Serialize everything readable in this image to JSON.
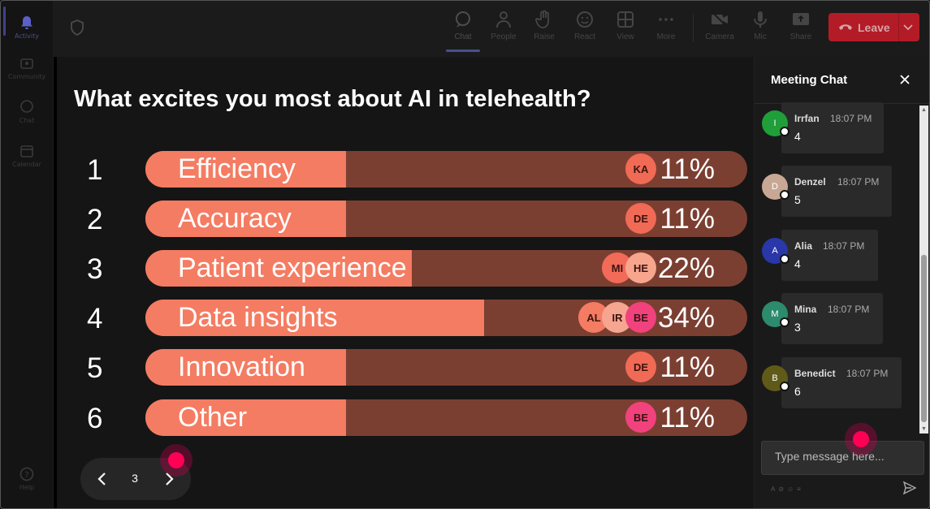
{
  "sidebar": {
    "items": [
      {
        "label": "Activity",
        "icon": "bell-icon",
        "active": true
      },
      {
        "label": "Community",
        "icon": "community-icon"
      },
      {
        "label": "Chat",
        "icon": "chat-icon"
      },
      {
        "label": "Calendar",
        "icon": "calendar-icon"
      },
      {
        "label": "Help",
        "icon": "help-icon"
      }
    ]
  },
  "toolbar": {
    "chat": "Chat",
    "people": "People",
    "raise": "Raise",
    "react": "React",
    "view": "View",
    "more": "More",
    "camera": "Camera",
    "mic": "Mic",
    "share": "Share",
    "leave": "Leave"
  },
  "poll": {
    "question": "What excites you most about AI in telehealth?",
    "options": [
      {
        "num": "1",
        "label": "Efficiency",
        "pct": "11%",
        "value": 11,
        "avatars": [
          "KA"
        ]
      },
      {
        "num": "2",
        "label": "Accuracy",
        "pct": "11%",
        "value": 11,
        "avatars": [
          "DE"
        ]
      },
      {
        "num": "3",
        "label": "Patient experience",
        "pct": "22%",
        "value": 22,
        "avatars": [
          "MI",
          "HE"
        ]
      },
      {
        "num": "4",
        "label": "Data insights",
        "pct": "34%",
        "value": 34,
        "avatars": [
          "AL",
          "IR",
          "BE"
        ]
      },
      {
        "num": "5",
        "label": "Innovation",
        "pct": "11%",
        "value": 11,
        "avatars": [
          "DE"
        ]
      },
      {
        "num": "6",
        "label": "Other",
        "pct": "11%",
        "value": 11,
        "avatars": [
          "BE"
        ]
      }
    ],
    "page": "3"
  },
  "colors": {
    "bar_fill": "#f47c62",
    "bar_track": "#7b3f32",
    "leave": "#b31b26",
    "pointer": "#ff0055"
  },
  "chat": {
    "title": "Meeting Chat",
    "input_placeholder": "Type message here...",
    "messages": [
      {
        "initial": "I",
        "name": "Irrfan",
        "time": "18:07 PM",
        "text": "4",
        "color": "#1f9e3a"
      },
      {
        "initial": "D",
        "name": "Denzel",
        "time": "18:07 PM",
        "text": "5",
        "color": "#c8a894"
      },
      {
        "initial": "A",
        "name": "Alia",
        "time": "18:07 PM",
        "text": "4",
        "color": "#2a37a8"
      },
      {
        "initial": "M",
        "name": "Mina",
        "time": "18:07 PM",
        "text": "3",
        "color": "#2c8a6d"
      },
      {
        "initial": "B",
        "name": "Benedict",
        "time": "18:07 PM",
        "text": "6",
        "color": "#5f5a18"
      }
    ]
  }
}
